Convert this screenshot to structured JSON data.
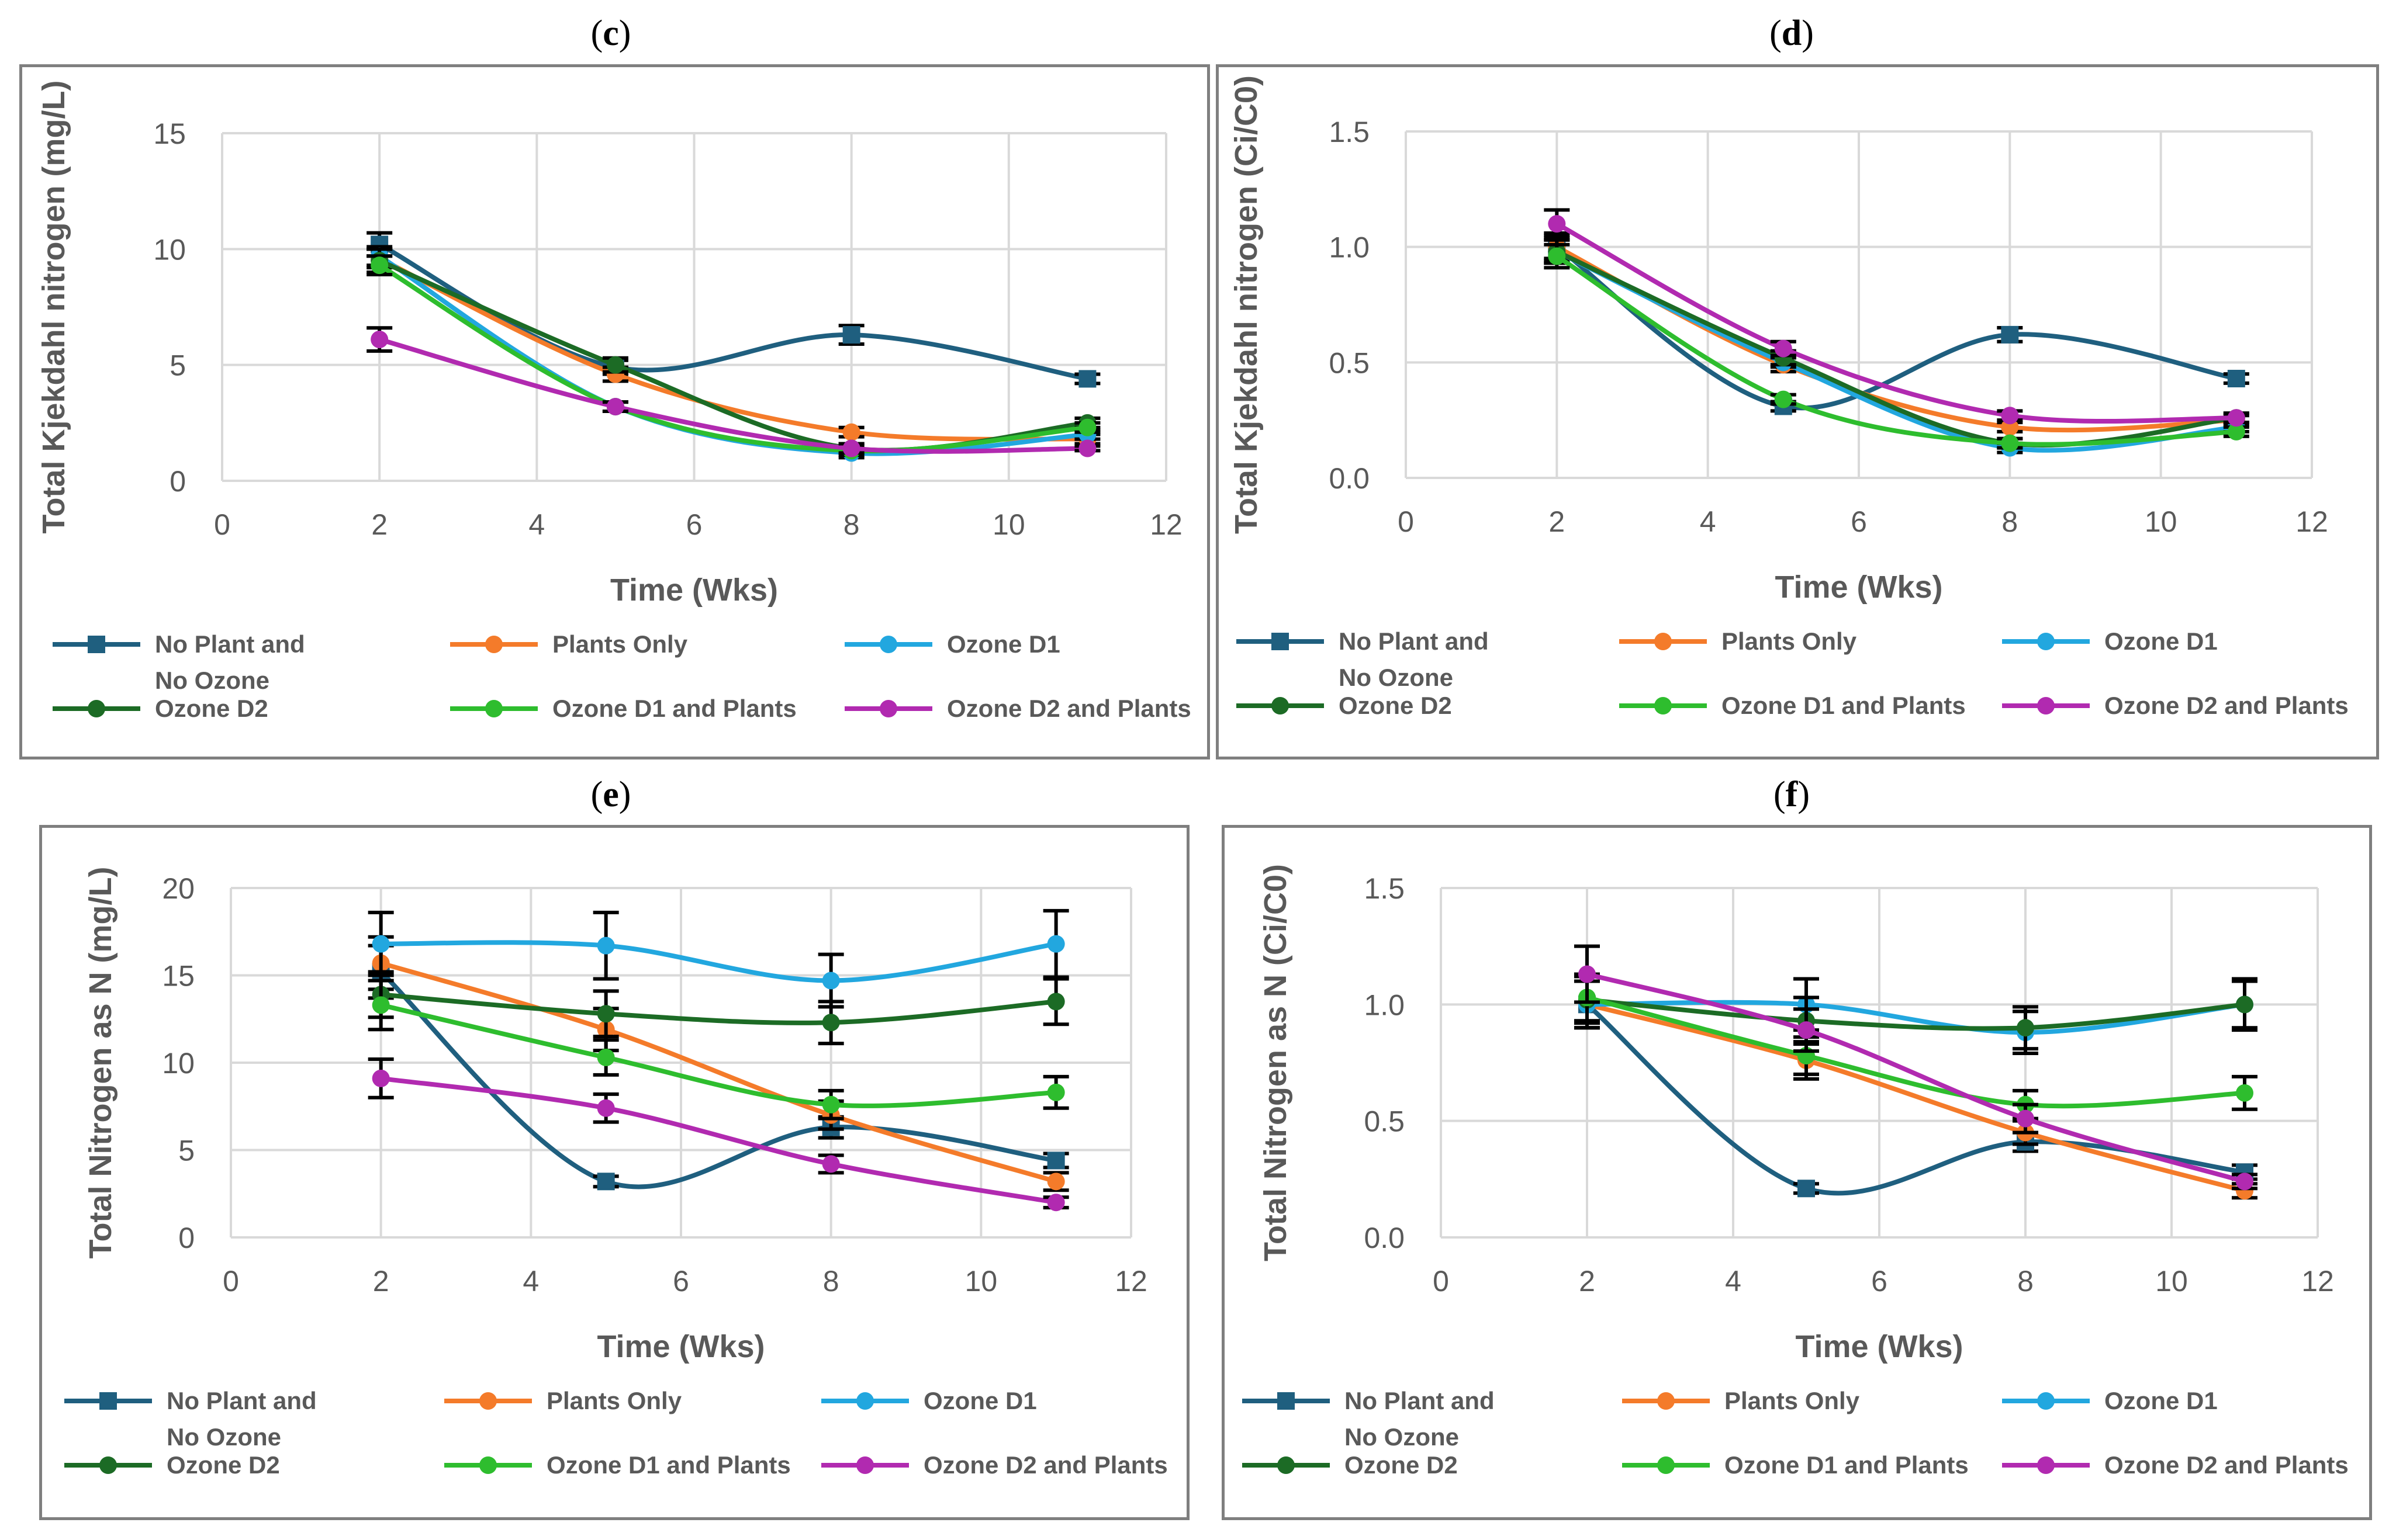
{
  "figure": {
    "legend": [
      {
        "name": "No Plant and No Ozone",
        "lines": [
          "No Plant and",
          "No Ozone"
        ],
        "color": "#1f5f7f",
        "marker": "square"
      },
      {
        "name": "Plants Only",
        "lines": [
          "Plants Only"
        ],
        "color": "#f47b2a",
        "marker": "circle"
      },
      {
        "name": "Ozone D1",
        "lines": [
          "Ozone D1"
        ],
        "color": "#22a7df",
        "marker": "circle"
      },
      {
        "name": "Ozone D2",
        "lines": [
          "Ozone D2"
        ],
        "color": "#1c6b25",
        "marker": "circle"
      },
      {
        "name": "Ozone D1 and Plants",
        "lines": [
          "Ozone D1 and Plants"
        ],
        "color": "#2ebd2e",
        "marker": "circle"
      },
      {
        "name": "Ozone D2 and Plants",
        "lines": [
          "Ozone D2 and Plants"
        ],
        "color": "#b12ab0",
        "marker": "circle"
      }
    ]
  },
  "chart_data": [
    {
      "id": "c",
      "panel_label": "c",
      "type": "line",
      "title": "",
      "xlabel": "Time (Wks)",
      "ylabel": "Total Kjekdahl nitrogen (mg/L)",
      "xlim": [
        0,
        12
      ],
      "ylim": [
        0,
        15
      ],
      "xticks": [
        0,
        2,
        4,
        6,
        8,
        10,
        12
      ],
      "yticks": [
        0,
        5,
        10,
        15
      ],
      "ytick_labels": [
        "0",
        "5",
        "10",
        "15"
      ],
      "grid": true,
      "legend_position": "bottom",
      "series": [
        {
          "name": "No Plant and No Ozone",
          "x": [
            2,
            5,
            8,
            11
          ],
          "y": [
            10.2,
            4.9,
            6.3,
            4.4
          ],
          "err": [
            0.5,
            0.3,
            0.4,
            0.2
          ]
        },
        {
          "name": "Plants Only",
          "x": [
            2,
            5,
            8,
            11
          ],
          "y": [
            9.6,
            4.6,
            2.1,
            1.8
          ],
          "err": [
            0.4,
            0.3,
            0.2,
            0.2
          ]
        },
        {
          "name": "Ozone D1",
          "x": [
            2,
            5,
            8,
            11
          ],
          "y": [
            9.7,
            3.2,
            1.2,
            2.0
          ],
          "err": [
            0.4,
            0.2,
            0.2,
            0.2
          ]
        },
        {
          "name": "Ozone D2",
          "x": [
            2,
            5,
            8,
            11
          ],
          "y": [
            9.5,
            5.0,
            1.4,
            2.5
          ],
          "err": [
            0.5,
            0.3,
            0.2,
            0.2
          ]
        },
        {
          "name": "Ozone D1 and Plants",
          "x": [
            2,
            5,
            8,
            11
          ],
          "y": [
            9.3,
            3.2,
            1.3,
            2.3
          ],
          "err": [
            0.4,
            0.2,
            0.2,
            0.2
          ]
        },
        {
          "name": "Ozone D2 and Plants",
          "x": [
            2,
            5,
            8,
            11
          ],
          "y": [
            6.1,
            3.2,
            1.4,
            1.4
          ],
          "err": [
            0.5,
            0.2,
            0.2,
            0.1
          ]
        }
      ]
    },
    {
      "id": "d",
      "panel_label": "d",
      "type": "line",
      "title": "",
      "xlabel": "Time (Wks)",
      "ylabel": "Total Kjekdahl nitrogen (Ci/C0)",
      "xlim": [
        0,
        12
      ],
      "ylim": [
        0,
        1.5
      ],
      "xticks": [
        0,
        2,
        4,
        6,
        8,
        10,
        12
      ],
      "yticks": [
        0,
        0.5,
        1.0,
        1.5
      ],
      "ytick_labels": [
        "0.0",
        "0.5",
        "1.0",
        "1.5"
      ],
      "grid": true,
      "legend_position": "bottom",
      "series": [
        {
          "name": "No Plant and No Ozone",
          "x": [
            2,
            5,
            8,
            11
          ],
          "y": [
            1.0,
            0.31,
            0.62,
            0.43
          ],
          "err": [
            0.06,
            0.02,
            0.03,
            0.02
          ]
        },
        {
          "name": "Plants Only",
          "x": [
            2,
            5,
            8,
            11
          ],
          "y": [
            1.0,
            0.49,
            0.22,
            0.25
          ],
          "err": [
            0.05,
            0.03,
            0.02,
            0.02
          ]
        },
        {
          "name": "Ozone D1",
          "x": [
            2,
            5,
            8,
            11
          ],
          "y": [
            0.98,
            0.5,
            0.13,
            0.22
          ],
          "err": [
            0.05,
            0.02,
            0.02,
            0.02
          ]
        },
        {
          "name": "Ozone D2",
          "x": [
            2,
            5,
            8,
            11
          ],
          "y": [
            0.98,
            0.52,
            0.15,
            0.26
          ],
          "err": [
            0.05,
            0.03,
            0.02,
            0.02
          ]
        },
        {
          "name": "Ozone D1 and Plants",
          "x": [
            2,
            5,
            8,
            11
          ],
          "y": [
            0.96,
            0.34,
            0.15,
            0.2
          ],
          "err": [
            0.05,
            0.02,
            0.02,
            0.02
          ]
        },
        {
          "name": "Ozone D2 and Plants",
          "x": [
            2,
            5,
            8,
            11
          ],
          "y": [
            1.1,
            0.56,
            0.27,
            0.26
          ],
          "err": [
            0.06,
            0.03,
            0.02,
            0.02
          ]
        }
      ]
    },
    {
      "id": "e",
      "panel_label": "e",
      "type": "line",
      "title": "",
      "xlabel": "Time (Wks)",
      "ylabel": "Total Nitrogen as N (mg/L)",
      "xlim": [
        0,
        12
      ],
      "ylim": [
        0,
        20
      ],
      "xticks": [
        0,
        2,
        4,
        6,
        8,
        10,
        12
      ],
      "yticks": [
        0,
        5,
        10,
        15,
        20
      ],
      "ytick_labels": [
        "0",
        "5",
        "10",
        "15",
        "20"
      ],
      "grid": true,
      "legend_position": "bottom",
      "series": [
        {
          "name": "No Plant and No Ozone",
          "x": [
            2,
            5,
            8,
            11
          ],
          "y": [
            15.2,
            3.2,
            6.3,
            4.4
          ],
          "err": [
            1.5,
            0.3,
            0.6,
            0.4
          ]
        },
        {
          "name": "Plants Only",
          "x": [
            2,
            5,
            8,
            11
          ],
          "y": [
            15.7,
            11.9,
            7.0,
            3.2
          ],
          "err": [
            1.5,
            1.2,
            0.8,
            0.5
          ]
        },
        {
          "name": "Ozone D1",
          "x": [
            2,
            5,
            8,
            11
          ],
          "y": [
            16.8,
            16.7,
            14.7,
            16.8
          ],
          "err": [
            1.8,
            1.9,
            1.5,
            1.9
          ]
        },
        {
          "name": "Ozone D2",
          "x": [
            2,
            5,
            8,
            11
          ],
          "y": [
            13.9,
            12.8,
            12.3,
            13.5
          ],
          "err": [
            1.3,
            1.3,
            1.2,
            1.3
          ]
        },
        {
          "name": "Ozone D1 and Plants",
          "x": [
            2,
            5,
            8,
            11
          ],
          "y": [
            13.3,
            10.3,
            7.6,
            8.3
          ],
          "err": [
            1.4,
            1.0,
            0.8,
            0.9
          ]
        },
        {
          "name": "Ozone D2 and Plants",
          "x": [
            2,
            5,
            8,
            11
          ],
          "y": [
            9.1,
            7.4,
            4.2,
            2.0
          ],
          "err": [
            1.1,
            0.8,
            0.5,
            0.3
          ]
        }
      ]
    },
    {
      "id": "f",
      "panel_label": "f",
      "type": "line",
      "title": "",
      "xlabel": "Time (Wks)",
      "ylabel": "Total Nitrogen as N (Ci/C0)",
      "xlim": [
        0,
        12
      ],
      "ylim": [
        0,
        1.5
      ],
      "xticks": [
        0,
        2,
        4,
        6,
        8,
        10,
        12
      ],
      "yticks": [
        0,
        0.5,
        1.0,
        1.5
      ],
      "ytick_labels": [
        "0.0",
        "0.5",
        "1.0",
        "1.5"
      ],
      "grid": true,
      "legend_position": "bottom",
      "series": [
        {
          "name": "No Plant and No Ozone",
          "x": [
            2,
            5,
            8,
            11
          ],
          "y": [
            1.0,
            0.21,
            0.41,
            0.28
          ],
          "err": [
            0.1,
            0.02,
            0.04,
            0.03
          ]
        },
        {
          "name": "Plants Only",
          "x": [
            2,
            5,
            8,
            11
          ],
          "y": [
            1.0,
            0.76,
            0.45,
            0.2
          ],
          "err": [
            0.1,
            0.08,
            0.05,
            0.03
          ]
        },
        {
          "name": "Ozone D1",
          "x": [
            2,
            5,
            8,
            11
          ],
          "y": [
            1.0,
            1.0,
            0.88,
            1.0
          ],
          "err": [
            0.1,
            0.11,
            0.09,
            0.11
          ]
        },
        {
          "name": "Ozone D2",
          "x": [
            2,
            5,
            8,
            11
          ],
          "y": [
            1.02,
            0.93,
            0.9,
            1.0
          ],
          "err": [
            0.1,
            0.1,
            0.09,
            0.1
          ]
        },
        {
          "name": "Ozone D1 and Plants",
          "x": [
            2,
            5,
            8,
            11
          ],
          "y": [
            1.03,
            0.78,
            0.57,
            0.62
          ],
          "err": [
            0.1,
            0.08,
            0.06,
            0.07
          ]
        },
        {
          "name": "Ozone D2 and Plants",
          "x": [
            2,
            5,
            8,
            11
          ],
          "y": [
            1.13,
            0.89,
            0.51,
            0.24
          ],
          "err": [
            0.12,
            0.09,
            0.06,
            0.03
          ]
        }
      ]
    }
  ]
}
